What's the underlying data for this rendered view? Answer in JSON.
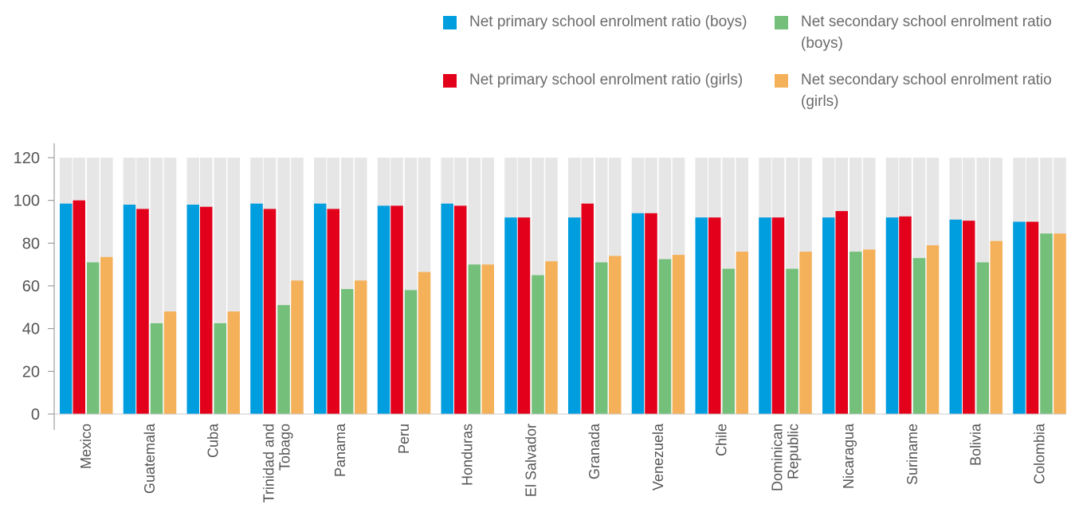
{
  "chart_data": {
    "type": "bar",
    "categories": [
      "Mexico",
      "Guatemala",
      "Cuba",
      "Trinidad and Tobago",
      "Panama",
      "Peru",
      "Honduras",
      "El Salvador",
      "Granada",
      "Venezuela",
      "Chile",
      "Dominican Republic",
      "Nicaragua",
      "Suriname",
      "Bolivia",
      "Colombia"
    ],
    "series": [
      {
        "name": "Net primary school enrolment ratio (boys)",
        "color": "#009ddf",
        "values": [
          98.5,
          98,
          98,
          98.5,
          98.5,
          97.5,
          98.5,
          92,
          92,
          94,
          92,
          92,
          92,
          92,
          91,
          90
        ]
      },
      {
        "name": "Net primary school enrolment ratio (girls)",
        "color": "#e3001b",
        "values": [
          100,
          96,
          97,
          96,
          96,
          97.5,
          97.5,
          92,
          98.5,
          94,
          92,
          92,
          95,
          92.5,
          90.5,
          90
        ]
      },
      {
        "name": "Net secondary school enrolment ratio (boys)",
        "color": "#74bf7a",
        "values": [
          71,
          42.5,
          42.5,
          51,
          58.5,
          58,
          70,
          65,
          71,
          72.5,
          68,
          68,
          76,
          73,
          71,
          84.5
        ]
      },
      {
        "name": "Net secondary school enrolment ratio (girls)",
        "color": "#f5b15a",
        "values": [
          73.5,
          48,
          48,
          62.5,
          62.5,
          66.5,
          70,
          71.5,
          74,
          74.5,
          76,
          76,
          77,
          79,
          81,
          84.5
        ]
      }
    ],
    "ylim": [
      0,
      120
    ],
    "yticks": [
      "0",
      "20",
      "40",
      "60",
      "80",
      "100",
      "120"
    ],
    "grid": false,
    "legend_position": "top-right",
    "background_column_color": "#e6e6e6"
  }
}
